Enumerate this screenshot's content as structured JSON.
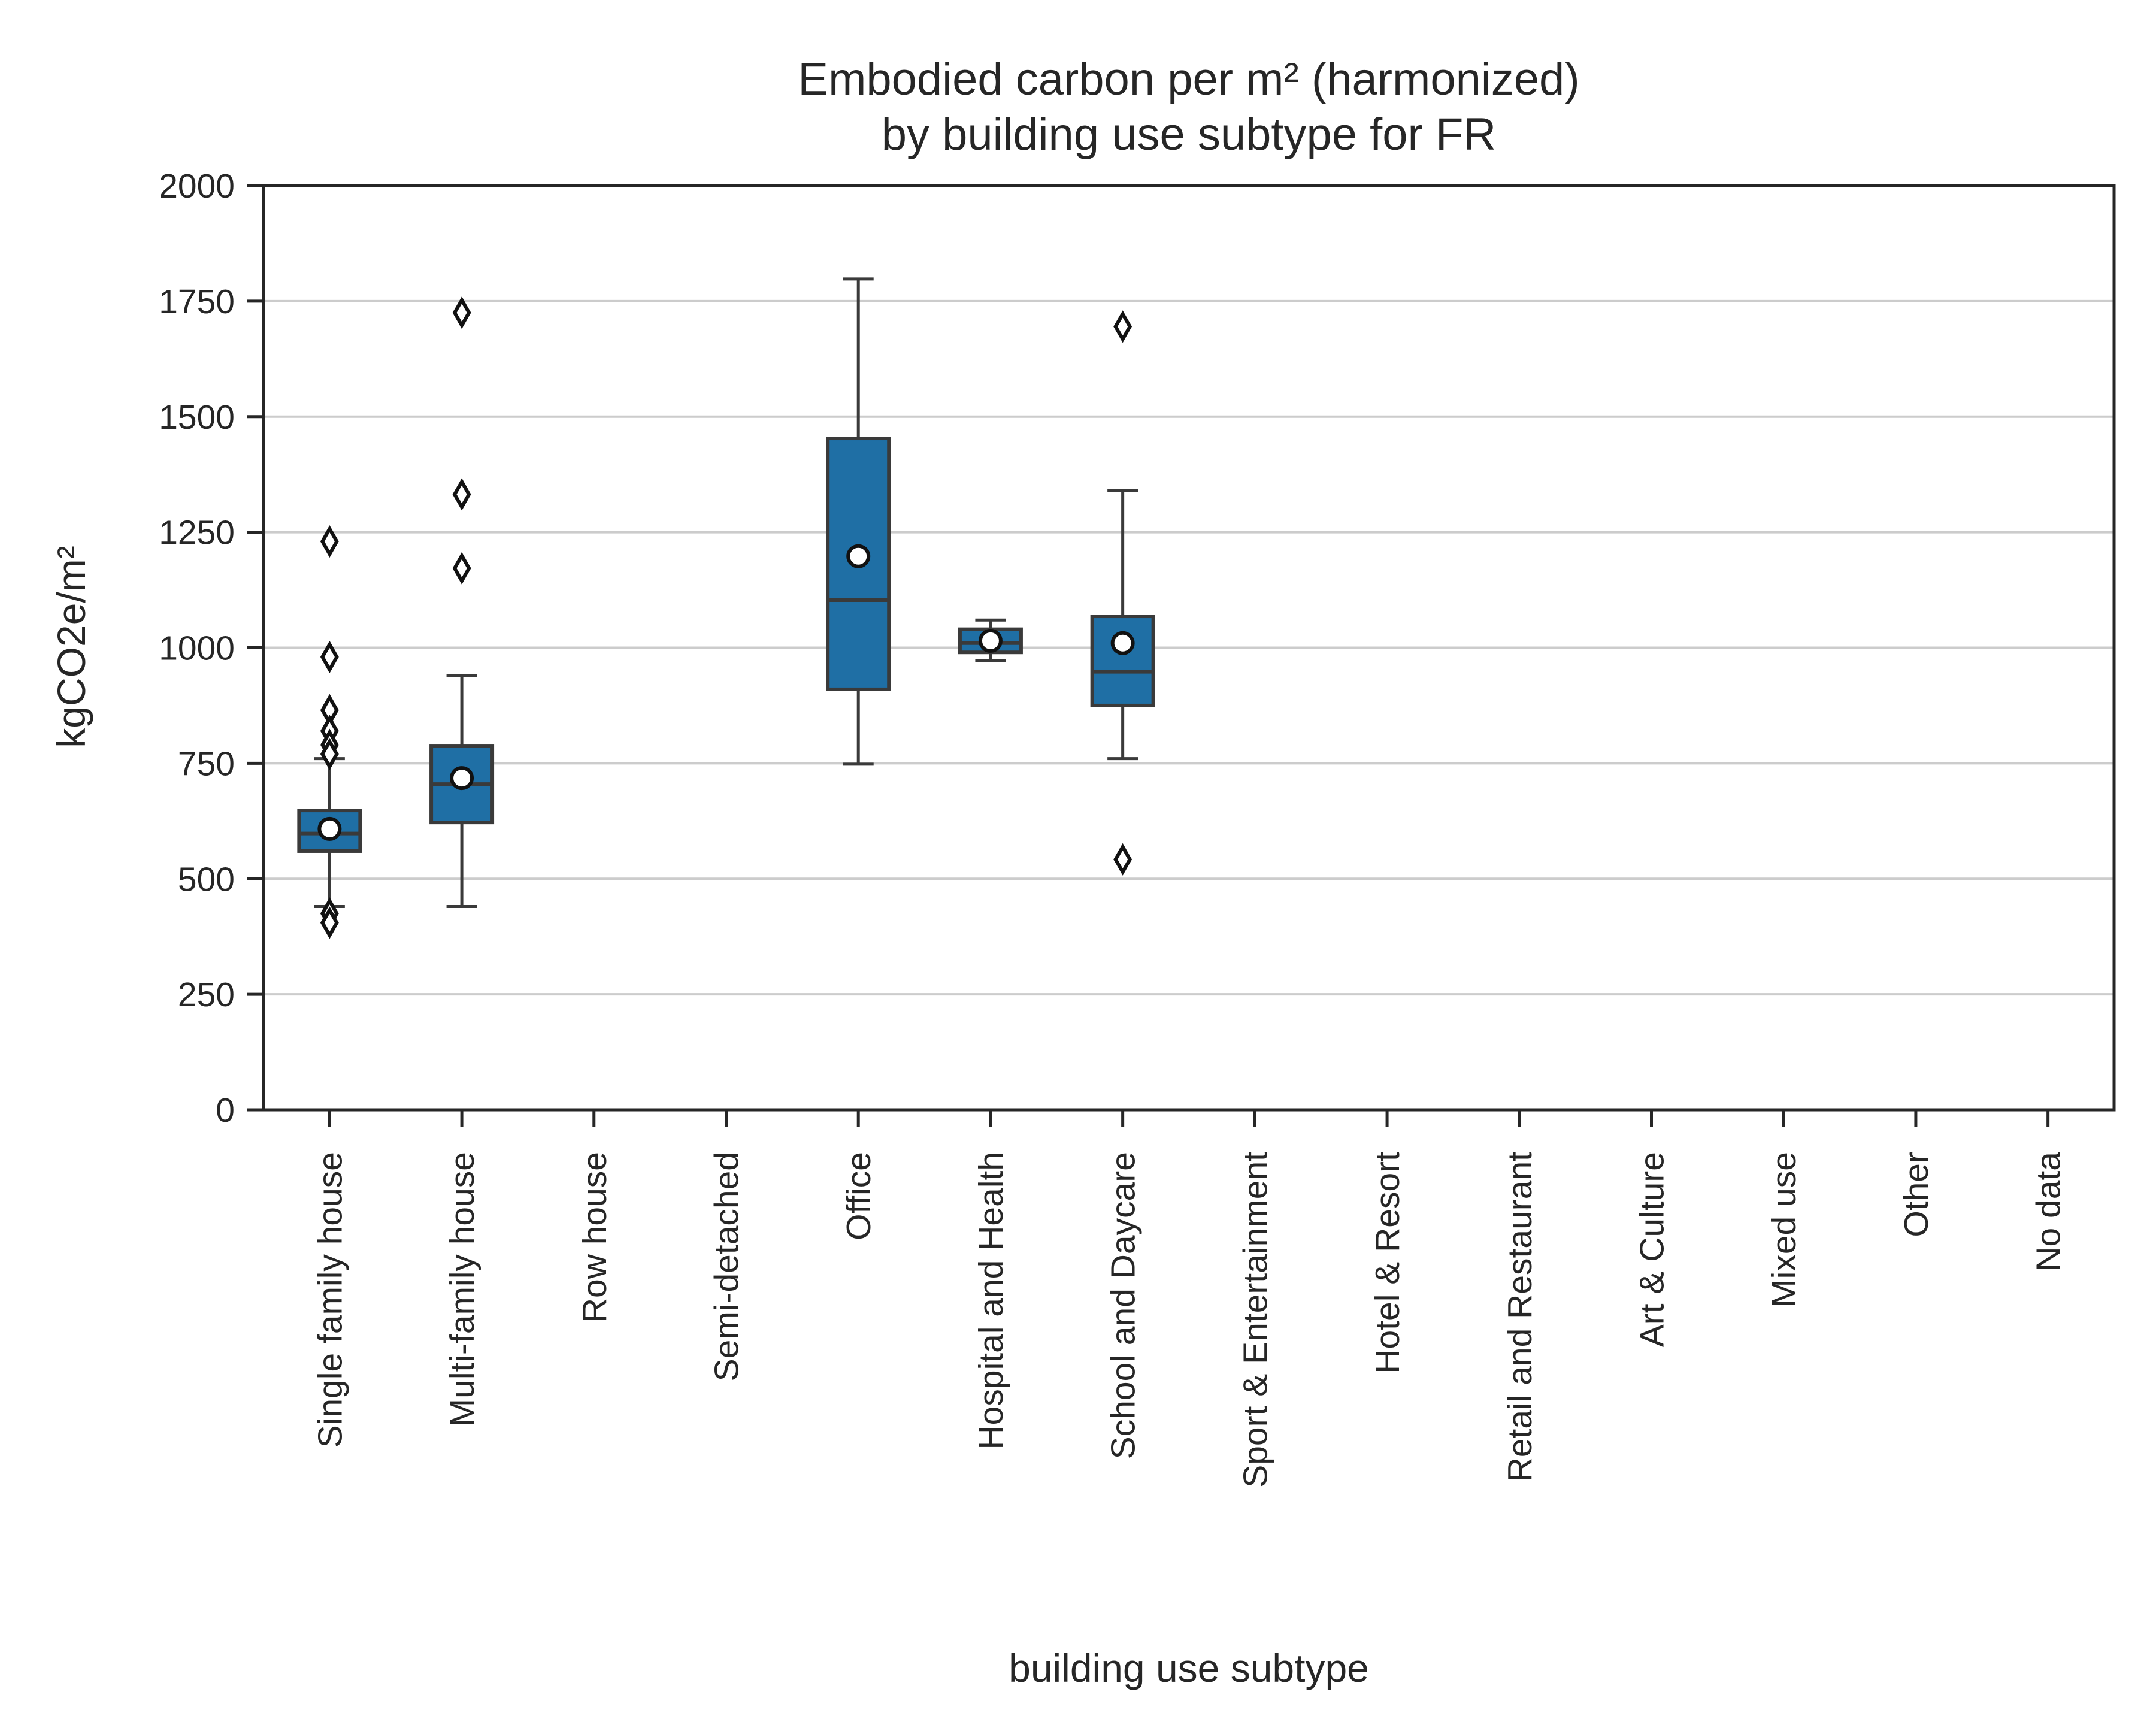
{
  "chart_data": {
    "type": "box",
    "title": [
      "Embodied carbon per m² (harmonized)",
      "by building use subtype for FR"
    ],
    "xlabel": "building use subtype",
    "ylabel": "kgCO2e/m²",
    "ylim": [
      0,
      2000
    ],
    "yticks": [
      0,
      250,
      500,
      750,
      1000,
      1250,
      1500,
      1750,
      2000
    ],
    "grid": "horizontal",
    "colors": {
      "box": "#1f6fa5",
      "grid": "#cccccc",
      "text": "#262626"
    },
    "categories": [
      "Single family house",
      "Multi-family house",
      "Row house",
      "Semi-detached",
      "Office",
      "Hospital and Health",
      "School and Daycare",
      "Sport & Entertainment",
      "Hotel & Resort",
      "Retail and Restaurant",
      "Art & Culture",
      "Mixed use",
      "Other",
      "No data"
    ],
    "boxes": [
      {
        "category": "Single family house",
        "whisker_low": 440,
        "q1": 560,
        "median": 598,
        "q3": 648,
        "whisker_high": 760,
        "mean": 608,
        "outliers": [
          1230,
          980,
          865,
          820,
          790,
          770,
          425,
          405
        ]
      },
      {
        "category": "Multi-family house",
        "whisker_low": 440,
        "q1": 622,
        "median": 705,
        "q3": 788,
        "whisker_high": 940,
        "mean": 718,
        "outliers": [
          1725,
          1332,
          1172
        ]
      },
      {
        "category": "Row house",
        "empty": true
      },
      {
        "category": "Semi-detached",
        "empty": true
      },
      {
        "category": "Office",
        "whisker_low": 748,
        "q1": 910,
        "median": 1103,
        "q3": 1453,
        "whisker_high": 1798,
        "mean": 1198,
        "outliers": []
      },
      {
        "category": "Hospital and Health",
        "whisker_low": 972,
        "q1": 990,
        "median": 1010,
        "q3": 1040,
        "whisker_high": 1060,
        "mean": 1015,
        "outliers": []
      },
      {
        "category": "School and Daycare",
        "whisker_low": 760,
        "q1": 875,
        "median": 948,
        "q3": 1068,
        "whisker_high": 1340,
        "mean": 1010,
        "outliers": [
          1695,
          542
        ]
      },
      {
        "category": "Sport & Entertainment",
        "empty": true
      },
      {
        "category": "Hotel & Resort",
        "empty": true
      },
      {
        "category": "Retail and Restaurant",
        "empty": true
      },
      {
        "category": "Art & Culture",
        "empty": true
      },
      {
        "category": "Mixed use",
        "empty": true
      },
      {
        "category": "Other",
        "empty": true
      },
      {
        "category": "No data",
        "empty": true
      }
    ]
  }
}
